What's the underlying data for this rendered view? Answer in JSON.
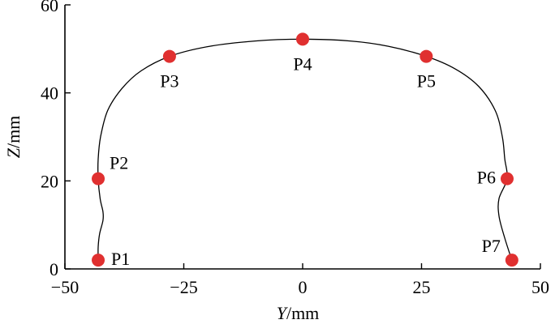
{
  "chart_data": {
    "type": "scatter",
    "xlabel_var": "Y",
    "xlabel_unit": "/mm",
    "ylabel_var": "Z",
    "ylabel_unit": "/mm",
    "xlim": [
      -50,
      50
    ],
    "ylim": [
      0,
      60
    ],
    "x_ticks": [
      -50,
      -25,
      0,
      25,
      50
    ],
    "x_tick_labels": [
      "−50",
      "−25",
      "0",
      "25",
      "50"
    ],
    "y_ticks": [
      0,
      20,
      40,
      60
    ],
    "y_tick_labels": [
      "0",
      "20",
      "40",
      "60"
    ],
    "grid": false,
    "marker_color": "#e03030",
    "line_color": "#000000",
    "points": [
      {
        "label": "P1",
        "x": -43,
        "y": 2,
        "label_side": "right"
      },
      {
        "label": "P2",
        "x": -43,
        "y": 20.5,
        "label_side": "upper-right"
      },
      {
        "label": "P3",
        "x": -28,
        "y": 48.3,
        "label_side": "below"
      },
      {
        "label": "P4",
        "x": 0,
        "y": 52.2,
        "label_side": "below"
      },
      {
        "label": "P5",
        "x": 26,
        "y": 48.3,
        "label_side": "below"
      },
      {
        "label": "P6",
        "x": 43,
        "y": 20.5,
        "label_side": "left"
      },
      {
        "label": "P7",
        "x": 44,
        "y": 2,
        "label_side": "upper-left"
      }
    ],
    "curve": [
      [
        -43.0,
        2.0
      ],
      [
        -43.0,
        5.0
      ],
      [
        -42.7,
        8.0
      ],
      [
        -42.0,
        11.0
      ],
      [
        -42.0,
        13.0
      ],
      [
        -42.6,
        16.0
      ],
      [
        -43.0,
        20.5
      ],
      [
        -43.0,
        25.0
      ],
      [
        -42.5,
        30.0
      ],
      [
        -41.0,
        36.0
      ],
      [
        -38.0,
        41.0
      ],
      [
        -34.0,
        45.0
      ],
      [
        -28.0,
        48.3
      ],
      [
        -20.0,
        50.5
      ],
      [
        -10.0,
        51.8
      ],
      [
        0.0,
        52.2
      ],
      [
        10.0,
        51.8
      ],
      [
        18.0,
        50.6
      ],
      [
        26.0,
        48.3
      ],
      [
        32.0,
        45.5
      ],
      [
        37.0,
        41.5
      ],
      [
        40.5,
        36.0
      ],
      [
        42.0,
        30.0
      ],
      [
        42.5,
        25.0
      ],
      [
        43.0,
        20.5
      ],
      [
        41.3,
        16.0
      ],
      [
        41.3,
        12.0
      ],
      [
        42.5,
        7.0
      ],
      [
        44.0,
        2.0
      ]
    ]
  }
}
